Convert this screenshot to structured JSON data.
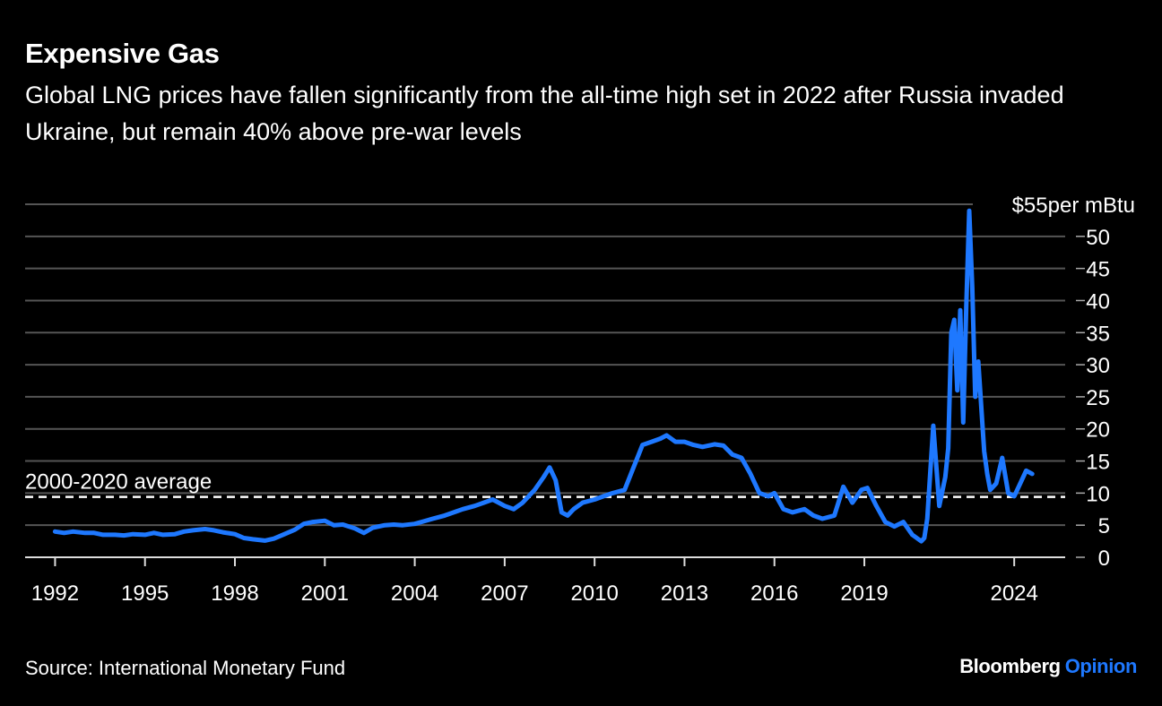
{
  "header": {
    "title": "Expensive Gas",
    "subtitle": "Global LNG prices have fallen significantly from the all-time high set in 2022 after Russia invaded Ukraine, but remain 40% above pre-war levels"
  },
  "footer": {
    "source": "Source: International Monetary Fund",
    "brand_main": "Bloomberg",
    "brand_sub": "Opinion"
  },
  "colors": {
    "background": "#000000",
    "line": "#1e78ff",
    "grid": "#555555",
    "brand_accent": "#1e78ff"
  },
  "chart_data": {
    "type": "line",
    "title": "Expensive Gas",
    "x_ticks": [
      "1992",
      "1995",
      "1998",
      "2001",
      "2004",
      "2007",
      "2010",
      "2013",
      "2016",
      "2019",
      "2024"
    ],
    "y_ticks": [
      "0",
      "5",
      "10",
      "15",
      "20",
      "25",
      "30",
      "35",
      "40",
      "45",
      "50"
    ],
    "y_top_label_value": "$55",
    "y_top_label_unit": "per mBtu",
    "ylim": [
      0,
      55
    ],
    "xlim": [
      1991.0,
      2025.7
    ],
    "grid": true,
    "reference_line": {
      "label": "2000-2020 average",
      "value": 9.4
    },
    "series": [
      {
        "x": [
          1992.0,
          1992.3,
          1992.6,
          1993.0,
          1993.3,
          1993.6,
          1994.0,
          1994.3,
          1994.6,
          1995.0,
          1995.3,
          1995.6,
          1996.0,
          1996.3,
          1996.6,
          1997.0,
          1997.3,
          1997.6,
          1998.0,
          1998.3,
          1998.6,
          1999.0,
          1999.3,
          1999.6,
          2000.0,
          2000.3,
          2000.6,
          2001.0,
          2001.3,
          2001.6,
          2002.0,
          2002.3,
          2002.6,
          2003.0,
          2003.3,
          2003.6,
          2004.0,
          2004.3,
          2004.6,
          2005.0,
          2005.3,
          2005.6,
          2006.0,
          2006.3,
          2006.6,
          2007.0,
          2007.3,
          2007.6,
          2008.0,
          2008.3,
          2008.5,
          2008.7,
          2008.9,
          2009.1,
          2009.3,
          2009.6,
          2010.0,
          2010.3,
          2010.6,
          2011.0,
          2011.3,
          2011.6,
          2011.9,
          2012.2,
          2012.4,
          2012.7,
          2013.0,
          2013.3,
          2013.6,
          2014.0,
          2014.3,
          2014.6,
          2014.9,
          2015.2,
          2015.5,
          2015.8,
          2016.0,
          2016.3,
          2016.6,
          2017.0,
          2017.3,
          2017.6,
          2018.0,
          2018.3,
          2018.6,
          2018.9,
          2019.1,
          2019.4,
          2019.7,
          2020.0,
          2020.3,
          2020.6,
          2020.9,
          2021.0,
          2021.1,
          2021.3,
          2021.5,
          2021.7,
          2021.8,
          2021.9,
          2022.0,
          2022.1,
          2022.2,
          2022.3,
          2022.4,
          2022.5,
          2022.6,
          2022.7,
          2022.8,
          2023.0,
          2023.1,
          2023.2,
          2023.4,
          2023.6,
          2023.8,
          2024.0,
          2024.2,
          2024.4,
          2024.6
        ],
        "values": [
          4.0,
          3.8,
          4.0,
          3.8,
          3.8,
          3.5,
          3.5,
          3.4,
          3.6,
          3.5,
          3.8,
          3.5,
          3.6,
          4.0,
          4.2,
          4.4,
          4.2,
          3.9,
          3.6,
          3.0,
          2.8,
          2.6,
          2.9,
          3.5,
          4.3,
          5.2,
          5.5,
          5.7,
          5.0,
          5.1,
          4.5,
          3.8,
          4.6,
          5.0,
          5.1,
          5.0,
          5.2,
          5.6,
          6.0,
          6.5,
          7.0,
          7.5,
          8.0,
          8.5,
          9.0,
          8.0,
          7.5,
          8.5,
          10.5,
          12.5,
          14.0,
          12.0,
          7.0,
          6.5,
          7.5,
          8.5,
          9.0,
          9.5,
          10.0,
          10.5,
          14.0,
          17.5,
          18.0,
          18.5,
          19.0,
          18.0,
          18.0,
          17.5,
          17.2,
          17.6,
          17.4,
          16.0,
          15.5,
          13.0,
          10.0,
          9.5,
          10.0,
          7.5,
          7.0,
          7.5,
          6.5,
          6.0,
          6.5,
          11.0,
          8.5,
          10.5,
          10.8,
          8.0,
          5.5,
          4.8,
          5.5,
          3.5,
          2.5,
          3.0,
          6.0,
          20.5,
          8.0,
          12.5,
          17.0,
          35.0,
          37.0,
          26.0,
          38.5,
          21.0,
          39.0,
          54.0,
          42.0,
          25.0,
          30.5,
          16.5,
          13.0,
          10.5,
          11.5,
          15.5,
          10.0,
          9.5,
          11.5,
          13.5,
          13.0
        ]
      }
    ]
  }
}
